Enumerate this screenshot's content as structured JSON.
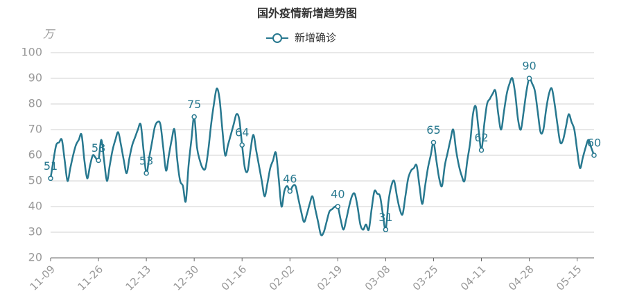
{
  "chart_data": {
    "type": "line",
    "title": "国外疫情新增趋势图",
    "y_unit": "万",
    "categories": [
      "11-09",
      null,
      null,
      null,
      null,
      null,
      null,
      null,
      null,
      null,
      null,
      null,
      null,
      null,
      null,
      null,
      null,
      "11-26",
      null,
      null,
      null,
      null,
      null,
      null,
      null,
      null,
      null,
      null,
      null,
      null,
      null,
      null,
      null,
      null,
      "12-13",
      null,
      null,
      null,
      null,
      null,
      null,
      null,
      null,
      null,
      null,
      null,
      null,
      null,
      null,
      null,
      null,
      "12-30",
      null,
      null,
      null,
      null,
      null,
      null,
      null,
      null,
      null,
      null,
      null,
      null,
      null,
      null,
      null,
      null,
      "01-16",
      null,
      null,
      null,
      null,
      null,
      null,
      null,
      null,
      null,
      null,
      null,
      null,
      null,
      null,
      null,
      null,
      "02-02",
      null,
      null,
      null,
      null,
      null,
      null,
      null,
      null,
      null,
      null,
      null,
      null,
      null,
      null,
      null,
      null,
      "02-19",
      null,
      null,
      null,
      null,
      null,
      null,
      null,
      null,
      null,
      null,
      null,
      null,
      null,
      null,
      null,
      null,
      "03-08",
      null,
      null,
      null,
      null,
      null,
      null,
      null,
      null,
      null,
      null,
      null,
      null,
      null,
      null,
      null,
      null,
      "03-25",
      null,
      null,
      null,
      null,
      null,
      null,
      null,
      null,
      null,
      null,
      null,
      null,
      null,
      null,
      null,
      null,
      "04-11",
      null,
      null,
      null,
      null,
      null,
      null,
      null,
      null,
      null,
      null,
      null,
      null,
      null,
      null,
      null,
      null,
      "04-28",
      null,
      null,
      null,
      null,
      null,
      null,
      null,
      null,
      null,
      null,
      null,
      null,
      null,
      null,
      null,
      null,
      "05-15",
      null,
      null,
      null,
      null,
      null,
      null
    ],
    "series": [
      {
        "name": "新增确诊",
        "color": "#27788f",
        "values": [
          51,
          58,
          64,
          65,
          66,
          58,
          50,
          55,
          60,
          64,
          66,
          68,
          58,
          51,
          56,
          60,
          59,
          58,
          66,
          58,
          50,
          56,
          62,
          66,
          69,
          64,
          58,
          53,
          59,
          64,
          67,
          70,
          72,
          62,
          53,
          59,
          65,
          71,
          73,
          72,
          63,
          54,
          60,
          66,
          70,
          58,
          50,
          48,
          42,
          56,
          66,
          75,
          63,
          58,
          55,
          55,
          62,
          72,
          80,
          86,
          82,
          70,
          60,
          64,
          68,
          72,
          76,
          74,
          64,
          55,
          54,
          62,
          68,
          62,
          56,
          50,
          44,
          49,
          55,
          58,
          61,
          51,
          40,
          46,
          48,
          46,
          48,
          48,
          43,
          38,
          34,
          37,
          41,
          44,
          39,
          34,
          29,
          30,
          34,
          38,
          39,
          40,
          40,
          35,
          31,
          35,
          40,
          44,
          45,
          40,
          33,
          31,
          33,
          31,
          39,
          46,
          45,
          44,
          37,
          31,
          42,
          48,
          50,
          44,
          39,
          37,
          44,
          51,
          54,
          55,
          56,
          48,
          41,
          48,
          55,
          60,
          65,
          58,
          51,
          48,
          56,
          61,
          66,
          70,
          62,
          56,
          52,
          50,
          58,
          65,
          76,
          79,
          70,
          62,
          72,
          80,
          82,
          84,
          85,
          76,
          70,
          77,
          84,
          88,
          90,
          84,
          74,
          70,
          77,
          85,
          90,
          88,
          85,
          77,
          69,
          70,
          78,
          84,
          86,
          80,
          72,
          65,
          66,
          71,
          76,
          73,
          70,
          62,
          55,
          59,
          63,
          66,
          63,
          60
        ],
        "label_indices": [
          0,
          17,
          34,
          51,
          68,
          85,
          102,
          119,
          136,
          153,
          170,
          193
        ]
      }
    ],
    "ylim": [
      20,
      100
    ],
    "yticks": [
      20,
      30,
      40,
      50,
      60,
      70,
      80,
      90,
      100
    ],
    "grid": true
  }
}
